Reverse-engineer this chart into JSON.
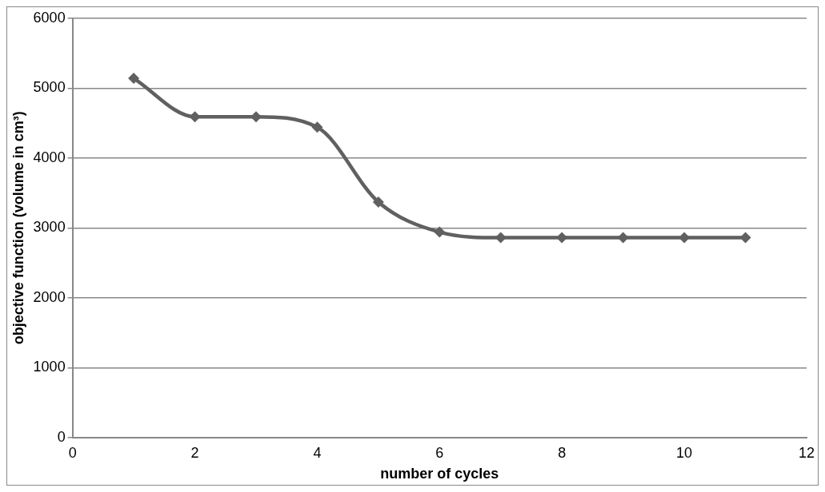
{
  "chart_data": {
    "type": "line",
    "xlabel": "number of cycles",
    "ylabel": "objective function (volume in cm³)",
    "x": [
      1,
      2,
      3,
      4,
      5,
      6,
      7,
      8,
      9,
      10,
      11
    ],
    "series": [
      {
        "color": "#606060",
        "values": [
          5140,
          4590,
          4590,
          4440,
          3370,
          2940,
          2860,
          2860,
          2860,
          2860,
          2860
        ]
      }
    ],
    "xlim": [
      0,
      12
    ],
    "xticks": [
      0,
      2,
      4,
      6,
      8,
      10,
      12
    ],
    "ylim": [
      0,
      6000
    ],
    "yticks": [
      0,
      1000,
      2000,
      3000,
      4000,
      5000,
      6000
    ],
    "grid": "y",
    "legend": false,
    "marker": "diamond",
    "line_style": "solid"
  }
}
